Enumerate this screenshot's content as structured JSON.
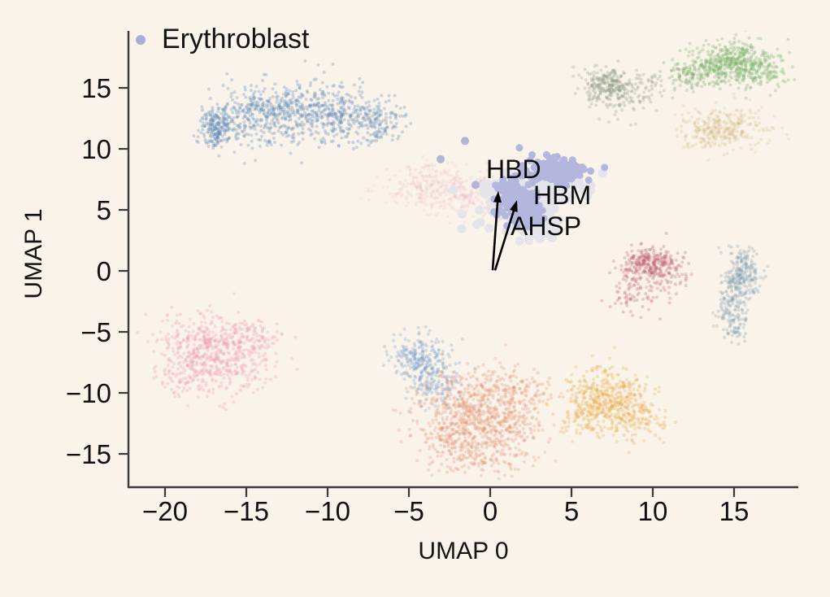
{
  "figure": {
    "description": "UMAP embedding scatter plot with Erythroblast cluster highlighted and gene annotations",
    "background_color": "#faf3ea",
    "spine_color": "#3a3a3a",
    "text_color": "#141414"
  },
  "chart_data": {
    "type": "scatter",
    "title": "",
    "xlabel": "UMAP 0",
    "ylabel": "UMAP 1",
    "xlim": [
      -22.25,
      18.95
    ],
    "ylim": [
      -17.73,
      19.67
    ],
    "x_ticks": [
      -20,
      -15,
      -10,
      -5,
      0,
      5,
      10,
      15
    ],
    "y_ticks": [
      -15,
      -10,
      -5,
      0,
      5,
      10,
      15
    ],
    "grid": false,
    "legend_position": "upper-left",
    "legend": [
      {
        "label": "Erythroblast",
        "color": "#a9aed6"
      }
    ],
    "highlighted_cluster": "Erythroblast",
    "highlight_color": "#b3b7dd",
    "annotations": [
      {
        "text": "HBD",
        "label_xy": [
          -0.25,
          9.0
        ]
      },
      {
        "text": "HBM",
        "label_xy": [
          2.7,
          6.4
        ]
      },
      {
        "text": "AHSP",
        "label_xy": [
          1.3,
          4.2
        ]
      }
    ],
    "arrows": [
      {
        "from": [
          0.15,
          0.05
        ],
        "to": [
          0.5,
          6.55
        ]
      },
      {
        "from": [
          0.3,
          0.05
        ],
        "to": [
          1.65,
          5.8
        ]
      }
    ],
    "clusters": [
      {
        "name": "faint-pink-mid",
        "color": "#e8a7b5",
        "opacity": 0.15,
        "r": 2.0,
        "parts": [
          {
            "cx": -3.8,
            "cy": 6.9,
            "sx": 1.6,
            "sy": 0.9,
            "n": 260
          },
          {
            "cx": -1.3,
            "cy": 6.1,
            "sx": 1.3,
            "sy": 0.9,
            "n": 160
          }
        ]
      },
      {
        "name": "blue-arc-top-left",
        "color": "#5e8ab8",
        "opacity": 0.3,
        "r": 2.0,
        "parts": [
          {
            "cx": -16.9,
            "cy": 11.7,
            "sx": 0.5,
            "sy": 0.75,
            "n": 200
          },
          {
            "cx": -14.6,
            "cy": 13.0,
            "sx": 1.1,
            "sy": 1.0,
            "n": 230
          },
          {
            "cx": -11.6,
            "cy": 13.4,
            "sx": 1.4,
            "sy": 1.05,
            "n": 260
          },
          {
            "cx": -8.8,
            "cy": 12.9,
            "sx": 1.2,
            "sy": 1.0,
            "n": 200
          },
          {
            "cx": -6.9,
            "cy": 12.2,
            "sx": 0.8,
            "sy": 0.9,
            "n": 110
          },
          {
            "cx": -12.0,
            "cy": 11.0,
            "sx": 3.0,
            "sy": 0.8,
            "n": 90
          }
        ]
      },
      {
        "name": "green-top-right",
        "color": "#7ab36a",
        "opacity": 0.3,
        "r": 2.0,
        "parts": [
          {
            "cx": 15.1,
            "cy": 17.2,
            "sx": 1.3,
            "sy": 0.85,
            "n": 420
          },
          {
            "cx": 12.7,
            "cy": 16.3,
            "sx": 0.9,
            "sy": 0.7,
            "n": 110
          },
          {
            "cx": 16.6,
            "cy": 16.1,
            "sx": 0.8,
            "sy": 0.7,
            "n": 80
          }
        ]
      },
      {
        "name": "sage-top",
        "color": "#8a9c80",
        "opacity": 0.28,
        "r": 2.0,
        "parts": [
          {
            "cx": 7.2,
            "cy": 15.4,
            "sx": 0.7,
            "sy": 0.7,
            "n": 200
          },
          {
            "cx": 8.4,
            "cy": 14.4,
            "sx": 0.9,
            "sy": 0.8,
            "n": 100
          },
          {
            "cx": 10.8,
            "cy": 15.4,
            "sx": 1.6,
            "sy": 0.5,
            "n": 60
          }
        ]
      },
      {
        "name": "tan-right",
        "color": "#c9ae6e",
        "opacity": 0.2,
        "r": 2.0,
        "parts": [
          {
            "cx": 14.6,
            "cy": 11.8,
            "sx": 1.3,
            "sy": 0.85,
            "n": 260
          },
          {
            "cx": 12.9,
            "cy": 10.9,
            "sx": 0.8,
            "sy": 0.6,
            "n": 60
          }
        ]
      },
      {
        "name": "pink-bottom-left",
        "color": "#ee9ab0",
        "opacity": 0.28,
        "r": 2.0,
        "parts": [
          {
            "cx": -17.6,
            "cy": -5.7,
            "sx": 1.4,
            "sy": 1.1,
            "n": 240
          },
          {
            "cx": -15.9,
            "cy": -7.6,
            "sx": 1.3,
            "sy": 1.3,
            "n": 240
          },
          {
            "cx": -18.4,
            "cy": -8.1,
            "sx": 1.0,
            "sy": 1.2,
            "n": 170
          },
          {
            "cx": -14.7,
            "cy": -5.5,
            "sx": 0.9,
            "sy": 0.8,
            "n": 90
          }
        ]
      },
      {
        "name": "blue-bottom",
        "color": "#6f9cc9",
        "opacity": 0.28,
        "r": 2.0,
        "parts": [
          {
            "cx": -4.5,
            "cy": -7.2,
            "sx": 0.9,
            "sy": 0.9,
            "n": 210
          },
          {
            "cx": -3.4,
            "cy": -9.4,
            "sx": 0.9,
            "sy": 1.0,
            "n": 130
          }
        ]
      },
      {
        "name": "salmon-bottom",
        "color": "#df8a6c",
        "opacity": 0.26,
        "r": 2.0,
        "parts": [
          {
            "cx": -1.6,
            "cy": -11.0,
            "sx": 1.6,
            "sy": 1.4,
            "n": 330
          },
          {
            "cx": 0.6,
            "cy": -12.7,
            "sx": 1.5,
            "sy": 1.5,
            "n": 330
          },
          {
            "cx": -2.4,
            "cy": -13.6,
            "sx": 1.2,
            "sy": 1.2,
            "n": 170
          },
          {
            "cx": 1.4,
            "cy": -9.6,
            "sx": 1.2,
            "sy": 1.0,
            "n": 130
          },
          {
            "cx": -0.4,
            "cy": -15.2,
            "sx": 1.4,
            "sy": 0.8,
            "n": 90
          }
        ]
      },
      {
        "name": "orange-bottom",
        "color": "#e5a93f",
        "opacity": 0.28,
        "r": 2.0,
        "parts": [
          {
            "cx": 7.3,
            "cy": -10.3,
            "sx": 1.3,
            "sy": 1.2,
            "n": 380
          },
          {
            "cx": 8.7,
            "cy": -12.0,
            "sx": 1.0,
            "sy": 0.9,
            "n": 130
          },
          {
            "cx": 5.9,
            "cy": -12.2,
            "sx": 0.8,
            "sy": 0.8,
            "n": 80
          }
        ]
      },
      {
        "name": "rose-right",
        "color": "#c05e6b",
        "opacity": 0.28,
        "r": 2.0,
        "parts": [
          {
            "cx": 9.9,
            "cy": 0.6,
            "sx": 0.8,
            "sy": 0.7,
            "n": 250
          },
          {
            "cx": 8.8,
            "cy": -1.5,
            "sx": 0.8,
            "sy": 1.1,
            "n": 100
          },
          {
            "cx": 11.2,
            "cy": -0.4,
            "sx": 0.6,
            "sy": 0.8,
            "n": 50
          }
        ]
      },
      {
        "name": "slate-right",
        "color": "#7e9dac",
        "opacity": 0.28,
        "r": 2.0,
        "parts": [
          {
            "cx": 15.5,
            "cy": -0.2,
            "sx": 0.55,
            "sy": 1.1,
            "n": 230
          },
          {
            "cx": 14.8,
            "cy": -2.9,
            "sx": 0.5,
            "sy": 1.0,
            "n": 110
          },
          {
            "cx": 15.1,
            "cy": -4.6,
            "sx": 0.4,
            "sy": 0.6,
            "n": 40
          }
        ]
      },
      {
        "name": "erythroblast-halo",
        "color": "#e5e4ea",
        "opacity": 1,
        "r": 5.5,
        "solid": true,
        "parts": [
          {
            "cx": 1.8,
            "cy": 5.5,
            "sx": 1.0,
            "sy": 1.1,
            "n": 140
          },
          {
            "cx": 4.0,
            "cy": 7.0,
            "sx": 0.9,
            "sy": 0.75,
            "n": 90
          },
          {
            "cx": 2.9,
            "cy": 3.5,
            "sx": 0.6,
            "sy": 0.45,
            "n": 50
          },
          {
            "cx": 0.4,
            "cy": 6.8,
            "sx": 0.45,
            "sy": 0.35,
            "n": 30
          }
        ]
      },
      {
        "name": "erythroblast-core",
        "color": "#b3b7dd",
        "opacity": 1,
        "r": 4.5,
        "solid": true,
        "parts": [
          {
            "cx": 3.95,
            "cy": 8.25,
            "sx": 0.85,
            "sy": 0.5,
            "n": 210
          },
          {
            "cx": 1.7,
            "cy": 5.6,
            "sx": 0.55,
            "sy": 0.8,
            "n": 170
          },
          {
            "cx": 2.6,
            "cy": 4.6,
            "sx": 0.3,
            "sy": 0.45,
            "n": 55
          },
          {
            "cx": 0.8,
            "cy": 6.9,
            "sx": 0.22,
            "sy": 0.18,
            "n": 20
          }
        ]
      },
      {
        "name": "erythroblast-outliers",
        "color": "#a9aed6",
        "opacity": 0.9,
        "r": 5,
        "dots": [
          [
            -1.55,
            10.65
          ],
          [
            -3.05,
            9.15
          ],
          [
            -0.9,
            7.05
          ]
        ]
      }
    ]
  }
}
